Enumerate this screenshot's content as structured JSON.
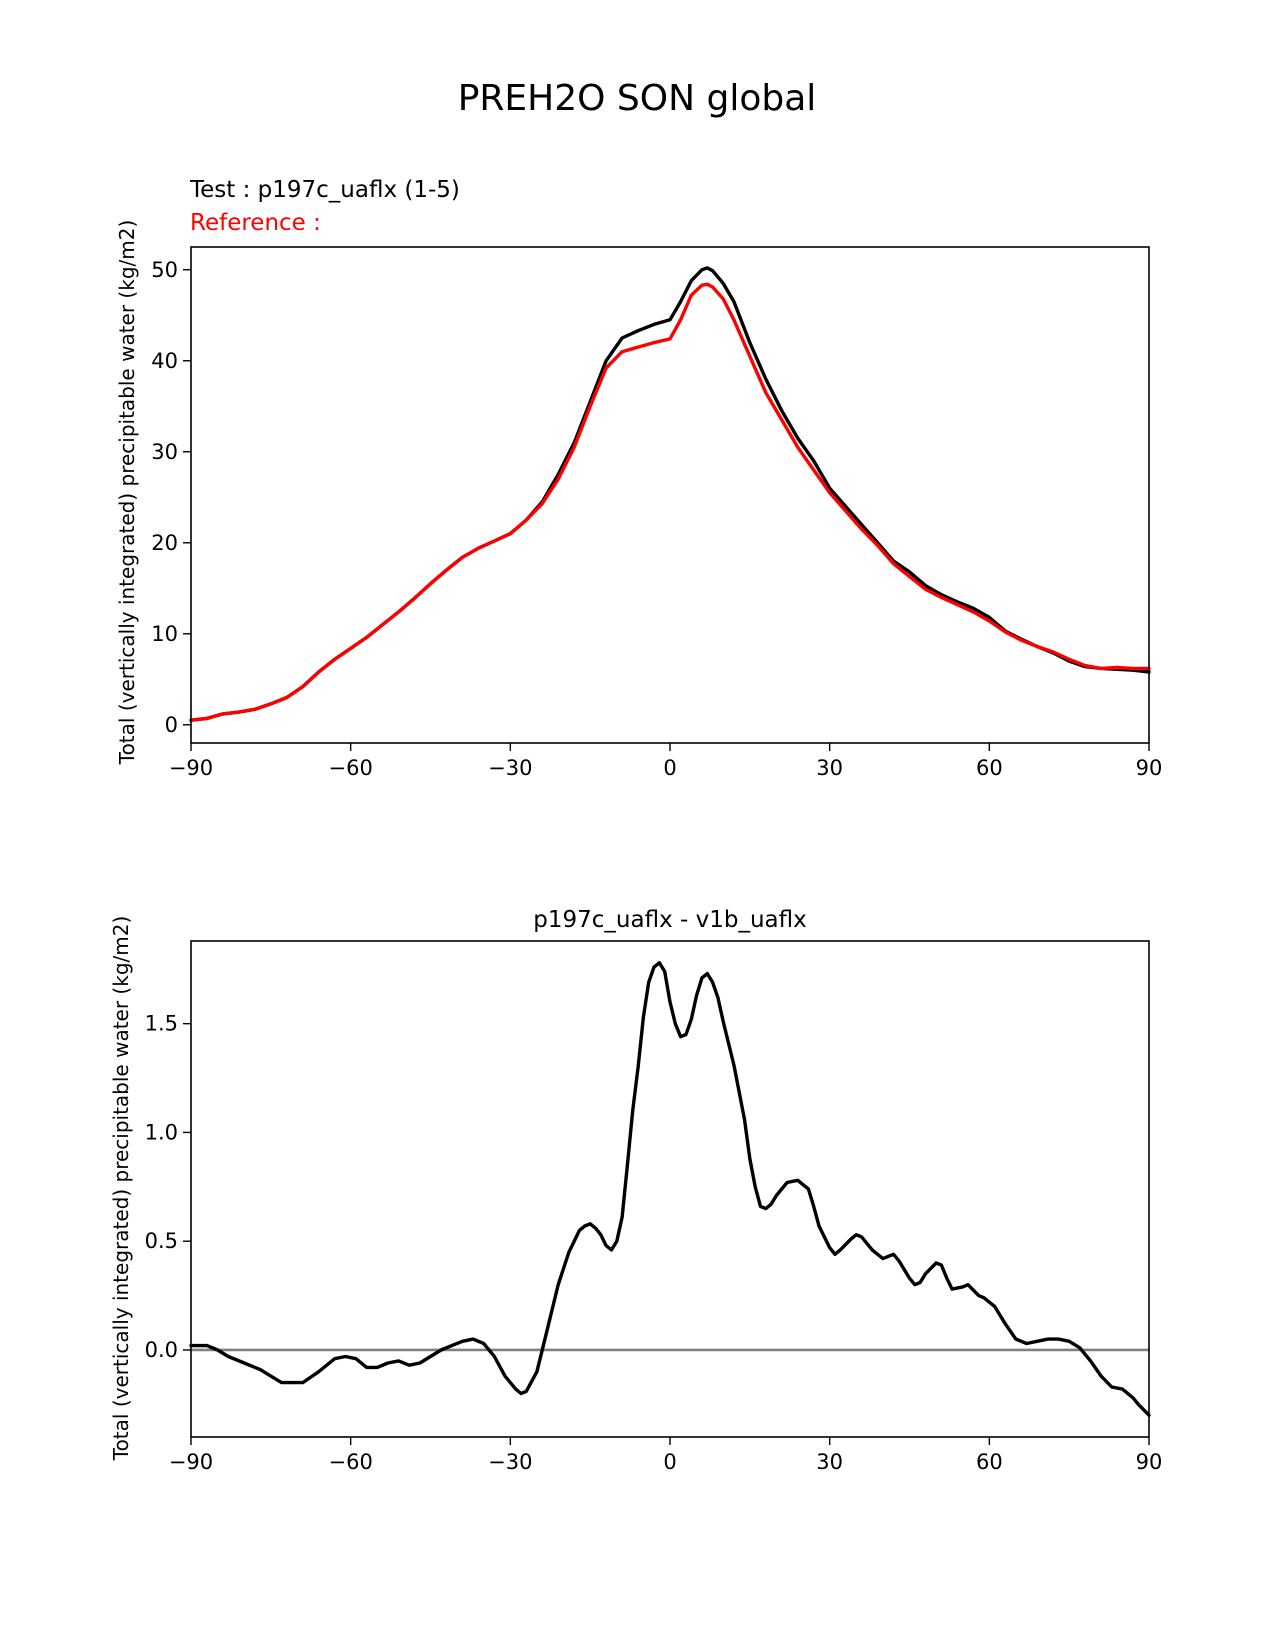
{
  "figure": {
    "title": "PREH2O SON global"
  },
  "colors": {
    "test": "#000000",
    "reference": "#ff0000",
    "zero_line": "#808080",
    "axes": "#000000"
  },
  "chart_data": [
    {
      "type": "line",
      "test_label": "Test : p197c_uaflx (1-5)",
      "reference_label": "Reference :",
      "xlabel": "",
      "ylabel": "Total (vertically integrated) precipitable water (kg/m2)",
      "xlim": [
        -90,
        90
      ],
      "ylim": [
        -2,
        52.5
      ],
      "xticks": [
        -90,
        -60,
        -30,
        0,
        30,
        60,
        90
      ],
      "xtick_labels": [
        "−90",
        "−60",
        "−30",
        "0",
        "30",
        "60",
        "90"
      ],
      "yticks": [
        0,
        10,
        20,
        30,
        40,
        50
      ],
      "ytick_labels": [
        "0",
        "10",
        "20",
        "30",
        "40",
        "50"
      ],
      "x": [
        -90,
        -87,
        -84,
        -81,
        -78,
        -75,
        -72,
        -69,
        -66,
        -63,
        -60,
        -57,
        -54,
        -51,
        -48,
        -45,
        -42,
        -39,
        -36,
        -33,
        -30,
        -27,
        -24,
        -21,
        -18,
        -15,
        -12,
        -9,
        -6,
        -3,
        0,
        2,
        4,
        6,
        7,
        8,
        10,
        12,
        15,
        18,
        21,
        24,
        27,
        30,
        33,
        36,
        39,
        42,
        45,
        48,
        51,
        54,
        57,
        60,
        63,
        66,
        69,
        72,
        75,
        78,
        81,
        84,
        87,
        90
      ],
      "series": [
        {
          "name": "test",
          "values": [
            0.5,
            0.7,
            1.2,
            1.4,
            1.7,
            2.3,
            3.0,
            4.2,
            5.8,
            7.2,
            8.4,
            9.6,
            11.0,
            12.4,
            13.9,
            15.5,
            17.0,
            18.4,
            19.4,
            20.2,
            21.0,
            22.5,
            24.5,
            27.5,
            31.0,
            35.5,
            40.0,
            42.5,
            43.3,
            44.0,
            44.5,
            46.5,
            48.8,
            50.0,
            50.2,
            49.9,
            48.5,
            46.5,
            42.0,
            38.0,
            34.5,
            31.5,
            29.0,
            26.0,
            24.0,
            22.0,
            20.0,
            18.0,
            16.8,
            15.3,
            14.3,
            13.5,
            12.8,
            11.8,
            10.3,
            9.4,
            8.6,
            7.9,
            7.0,
            6.4,
            6.2,
            6.1,
            6.0,
            5.8
          ]
        },
        {
          "name": "reference",
          "values": [
            0.5,
            0.7,
            1.2,
            1.4,
            1.7,
            2.3,
            3.0,
            4.2,
            5.8,
            7.2,
            8.4,
            9.6,
            11.0,
            12.4,
            13.9,
            15.5,
            17.0,
            18.4,
            19.4,
            20.2,
            21.0,
            22.5,
            24.3,
            27.0,
            30.5,
            35.0,
            39.2,
            41.0,
            41.5,
            42.0,
            42.4,
            44.5,
            47.2,
            48.3,
            48.4,
            48.1,
            46.8,
            44.5,
            40.5,
            36.5,
            33.5,
            30.5,
            28.0,
            25.5,
            23.5,
            21.5,
            19.7,
            17.7,
            16.3,
            14.9,
            14.0,
            13.2,
            12.4,
            11.4,
            10.2,
            9.3,
            8.6,
            8.0,
            7.2,
            6.5,
            6.2,
            6.3,
            6.2,
            6.2
          ]
        }
      ]
    },
    {
      "type": "line",
      "title": "p197c_uaflx - v1b_uaflx",
      "xlabel": "",
      "ylabel": "Total (vertically integrated) precipitable water (kg/m2)",
      "xlim": [
        -90,
        90
      ],
      "ylim": [
        -0.4,
        1.88
      ],
      "xticks": [
        -90,
        -60,
        -30,
        0,
        30,
        60,
        90
      ],
      "xtick_labels": [
        "−90",
        "−60",
        "−30",
        "0",
        "30",
        "60",
        "90"
      ],
      "yticks": [
        0.0,
        0.5,
        1.0,
        1.5
      ],
      "ytick_labels": [
        "0.0",
        "0.5",
        "1.0",
        "1.5"
      ],
      "reference_line": 0,
      "x": [
        -90,
        -87,
        -85,
        -83,
        -80,
        -77,
        -75,
        -73,
        -71,
        -69,
        -66,
        -63,
        -61,
        -59,
        -57,
        -55,
        -53,
        -51,
        -49,
        -47,
        -45,
        -43,
        -41,
        -39,
        -37,
        -35,
        -33,
        -31,
        -29,
        -28,
        -27,
        -25,
        -23,
        -21,
        -19,
        -18,
        -17,
        -16,
        -15,
        -14,
        -13,
        -12,
        -11,
        -10,
        -9,
        -8,
        -7,
        -6,
        -5,
        -4,
        -3,
        -2,
        -1,
        0,
        1,
        2,
        3,
        4,
        5,
        6,
        7,
        8,
        9,
        10,
        12,
        14,
        15,
        16,
        17,
        18,
        19,
        20,
        22,
        24,
        26,
        27,
        28,
        30,
        31,
        32,
        34,
        35,
        36,
        37,
        38,
        40,
        41,
        42,
        43,
        45,
        46,
        47,
        48,
        50,
        51,
        52,
        53,
        55,
        56,
        58,
        59,
        61,
        63,
        65,
        67,
        69,
        71,
        73,
        75,
        77,
        79,
        81,
        83,
        85,
        87,
        88,
        90
      ],
      "series": [
        {
          "name": "difference",
          "values": [
            0.02,
            0.02,
            0.0,
            -0.03,
            -0.06,
            -0.09,
            -0.12,
            -0.15,
            -0.15,
            -0.15,
            -0.1,
            -0.04,
            -0.03,
            -0.04,
            -0.08,
            -0.08,
            -0.06,
            -0.05,
            -0.07,
            -0.06,
            -0.03,
            0.0,
            0.02,
            0.04,
            0.05,
            0.03,
            -0.03,
            -0.12,
            -0.18,
            -0.2,
            -0.19,
            -0.1,
            0.1,
            0.3,
            0.45,
            0.5,
            0.55,
            0.57,
            0.58,
            0.56,
            0.53,
            0.48,
            0.46,
            0.5,
            0.61,
            0.85,
            1.1,
            1.3,
            1.53,
            1.69,
            1.76,
            1.78,
            1.74,
            1.6,
            1.5,
            1.44,
            1.45,
            1.52,
            1.63,
            1.71,
            1.73,
            1.69,
            1.62,
            1.51,
            1.31,
            1.06,
            0.88,
            0.75,
            0.66,
            0.65,
            0.67,
            0.71,
            0.77,
            0.78,
            0.74,
            0.66,
            0.57,
            0.47,
            0.44,
            0.46,
            0.51,
            0.53,
            0.52,
            0.49,
            0.46,
            0.42,
            0.43,
            0.44,
            0.41,
            0.33,
            0.3,
            0.31,
            0.35,
            0.4,
            0.39,
            0.33,
            0.28,
            0.29,
            0.3,
            0.25,
            0.24,
            0.2,
            0.12,
            0.05,
            0.03,
            0.04,
            0.05,
            0.05,
            0.04,
            0.01,
            -0.05,
            -0.12,
            -0.17,
            -0.18,
            -0.22,
            -0.25,
            -0.3
          ]
        }
      ]
    }
  ]
}
